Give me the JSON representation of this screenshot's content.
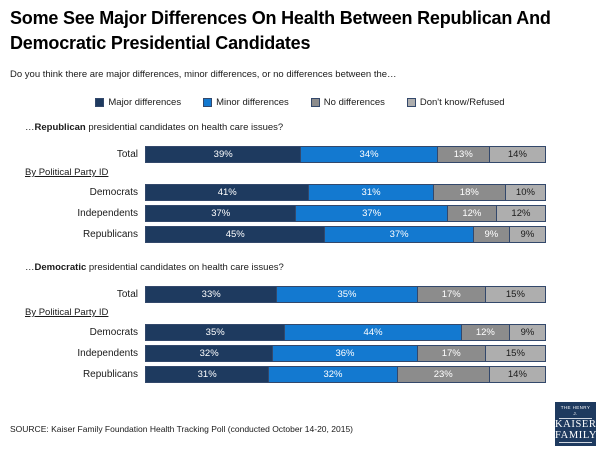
{
  "page": {
    "title": "Some See Major Differences On Health Between Republican And Democratic Presidential Candidates",
    "subtitle": "Do you think there are major differences, minor differences, or no differences between the…",
    "source": "SOURCE: Kaiser Family Foundation Health Tracking Poll (conducted October 14-20, 2015)"
  },
  "legend": {
    "items": [
      {
        "label": "Major differences",
        "color": "#1e3a5f",
        "text_color": "#ffffff"
      },
      {
        "label": "Minor differences",
        "color": "#1379d0",
        "text_color": "#ffffff"
      },
      {
        "label": "No differences",
        "color": "#8c8c8c",
        "text_color": "#ffffff"
      },
      {
        "label": "Don't know/Refused",
        "color": "#aeaeae",
        "text_color": "#1a1a1a"
      }
    ]
  },
  "colors": {
    "segment_border": "#33486b",
    "logo_background": "#1e3a5f"
  },
  "logo": {
    "top": "THE HENRY J.",
    "name_line1": "KAISER",
    "name_line2": "FAMILY",
    "bottom": "FOUNDATION"
  },
  "chart_data": [
    {
      "type": "bar",
      "stacked": true,
      "orientation": "horizontal",
      "unit": "%",
      "xlim": [
        0,
        100
      ],
      "grid": false,
      "question": {
        "prefix": "…",
        "bold": "Republican",
        "rest": " presidential candidates on health care issues?"
      },
      "group_label": "By Political Party ID",
      "categories": [
        "Total",
        "Democrats",
        "Independents",
        "Republicans"
      ],
      "series": [
        {
          "name": "Major differences",
          "values": [
            39,
            41,
            37,
            45
          ]
        },
        {
          "name": "Minor differences",
          "values": [
            34,
            31,
            37,
            37
          ]
        },
        {
          "name": "No differences",
          "values": [
            13,
            18,
            12,
            9
          ]
        },
        {
          "name": "Don't know/Refused",
          "values": [
            14,
            10,
            12,
            9
          ]
        }
      ]
    },
    {
      "type": "bar",
      "stacked": true,
      "orientation": "horizontal",
      "unit": "%",
      "xlim": [
        0,
        100
      ],
      "grid": false,
      "question": {
        "prefix": "…",
        "bold": "Democratic",
        "rest": " presidential candidates on health care issues?"
      },
      "group_label": "By Political Party ID",
      "categories": [
        "Total",
        "Democrats",
        "Independents",
        "Republicans"
      ],
      "series": [
        {
          "name": "Major differences",
          "values": [
            33,
            35,
            32,
            31
          ]
        },
        {
          "name": "Minor differences",
          "values": [
            35,
            44,
            36,
            32
          ]
        },
        {
          "name": "No differences",
          "values": [
            17,
            12,
            17,
            23
          ]
        },
        {
          "name": "Don't know/Refused",
          "values": [
            15,
            9,
            15,
            14
          ]
        }
      ]
    }
  ]
}
